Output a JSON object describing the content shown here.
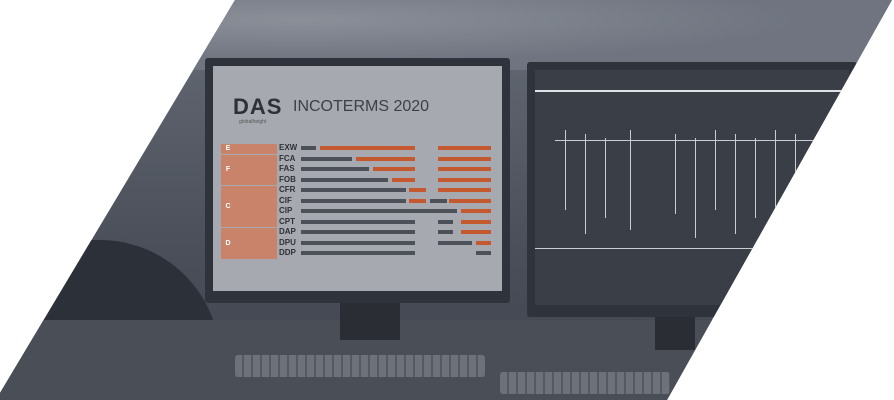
{
  "poster": {
    "brand": "DAS",
    "brand_sub": "globalfreight",
    "title": "INCOTERMS 2020",
    "sections": [
      "E",
      "F",
      "C",
      "D"
    ],
    "terms": [
      {
        "code": "EXW",
        "segments": [
          [
            "g",
            0,
            0.08
          ],
          [
            "o",
            0.1,
            0.6
          ],
          [
            "o",
            0.72,
            1.0
          ]
        ]
      },
      {
        "code": "FCA",
        "segments": [
          [
            "g",
            0,
            0.27
          ],
          [
            "o",
            0.29,
            0.6
          ],
          [
            "o",
            0.72,
            1.0
          ]
        ]
      },
      {
        "code": "FAS",
        "segments": [
          [
            "g",
            0,
            0.36
          ],
          [
            "o",
            0.38,
            0.6
          ],
          [
            "o",
            0.72,
            1.0
          ]
        ]
      },
      {
        "code": "FOB",
        "segments": [
          [
            "g",
            0,
            0.46
          ],
          [
            "o",
            0.48,
            0.6
          ],
          [
            "o",
            0.72,
            1.0
          ]
        ]
      },
      {
        "code": "CFR",
        "segments": [
          [
            "g",
            0,
            0.55
          ],
          [
            "o",
            0.57,
            0.66
          ],
          [
            "o",
            0.72,
            1.0
          ]
        ]
      },
      {
        "code": "CIF",
        "segments": [
          [
            "g",
            0,
            0.55
          ],
          [
            "o",
            0.57,
            0.66
          ],
          [
            "g",
            0.68,
            0.77
          ],
          [
            "o",
            0.78,
            1.0
          ]
        ]
      },
      {
        "code": "CIP",
        "segments": [
          [
            "g",
            0,
            0.82
          ],
          [
            "o",
            0.84,
            1.0
          ]
        ]
      },
      {
        "code": "CPT",
        "segments": [
          [
            "g",
            0,
            0.6
          ],
          [
            "g",
            0.72,
            0.8
          ],
          [
            "o",
            0.84,
            1.0
          ]
        ]
      },
      {
        "code": "DAP",
        "segments": [
          [
            "g",
            0,
            0.6
          ],
          [
            "g",
            0.72,
            0.8
          ],
          [
            "o",
            0.84,
            1.0
          ]
        ]
      },
      {
        "code": "DPU",
        "segments": [
          [
            "g",
            0,
            0.6
          ],
          [
            "g",
            0.72,
            0.9
          ],
          [
            "o",
            0.92,
            1.0
          ]
        ]
      },
      {
        "code": "DDP",
        "segments": [
          [
            "g",
            0,
            0.6
          ],
          [
            "g",
            0.92,
            1.0
          ]
        ]
      }
    ]
  },
  "colors": {
    "accent": "#c4582e",
    "overlay": "#4b505b"
  }
}
